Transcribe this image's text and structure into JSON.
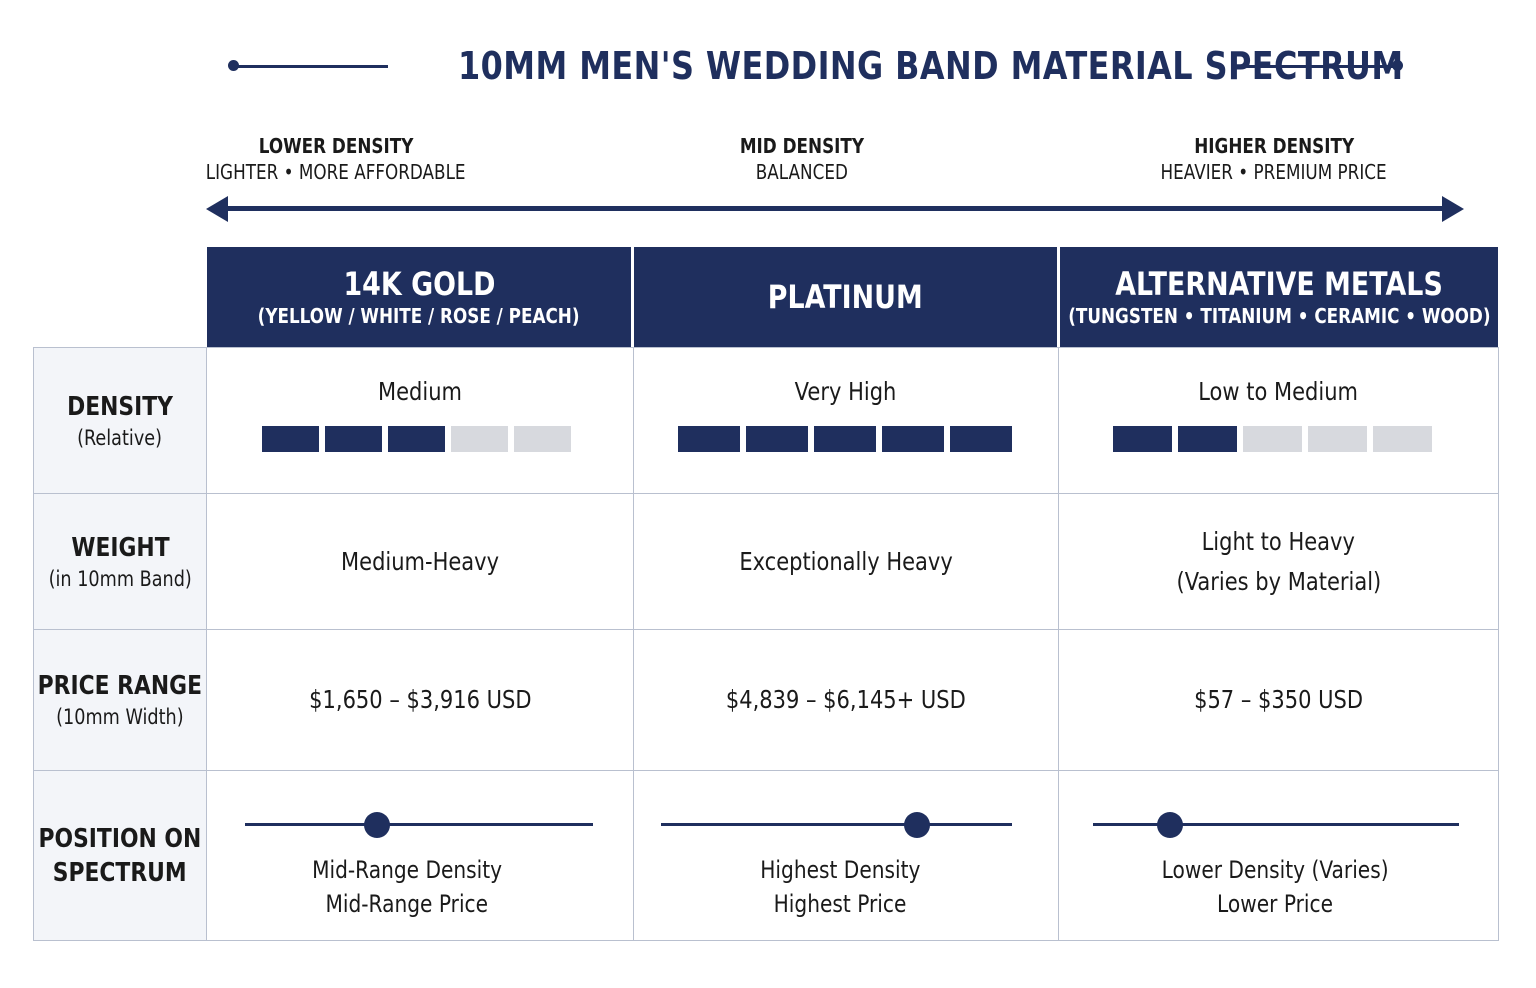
{
  "title": "10MM MEN'S WEDDING BAND MATERIAL SPECTRUM",
  "density_scale": {
    "low": {
      "head": "LOWER DENSITY",
      "sub": "LIGHTER • MORE AFFORDABLE"
    },
    "mid": {
      "head": "MID DENSITY",
      "sub": "BALANCED"
    },
    "high": {
      "head": "HIGHER DENSITY",
      "sub": "HEAVIER • PREMIUM PRICE"
    }
  },
  "columns": [
    {
      "name": "14K GOLD",
      "sub": "(YELLOW / WHITE / ROSE / PEACH)"
    },
    {
      "name": "PLATINUM",
      "sub": ""
    },
    {
      "name": "ALTERNATIVE METALS",
      "sub": "(TUNGSTEN • TITANIUM • CERAMIC • WOOD)"
    }
  ],
  "rows": [
    {
      "title": "DENSITY",
      "sub": "(Relative)"
    },
    {
      "title": "WEIGHT",
      "sub": "(in 10mm Band)"
    },
    {
      "title": "PRICE RANGE",
      "sub": "(10mm Width)"
    },
    {
      "title": "POSITION ON",
      "title2": "SPECTRUM"
    }
  ],
  "density": [
    {
      "label": "Medium",
      "level": 3,
      "max": 5
    },
    {
      "label": "Very High",
      "level": 5,
      "max": 5
    },
    {
      "label": "Low to Medium",
      "level": 2,
      "max": 5
    }
  ],
  "weight": [
    {
      "line1": "Medium-Heavy",
      "line2": ""
    },
    {
      "line1": "Exceptionally Heavy",
      "line2": ""
    },
    {
      "line1": "Light to Heavy",
      "line2": "(Varies by Material)"
    }
  ],
  "price": [
    "$1,650 – $3,916 USD",
    "$4,839 – $6,145+ USD",
    "$57 – $350 USD"
  ],
  "position": [
    {
      "value": 0.38,
      "line1": "Mid-Range Density",
      "line2": "Mid-Range Price"
    },
    {
      "value": 0.73,
      "line1": "Highest Density",
      "line2": "Highest Price"
    },
    {
      "value": 0.21,
      "line1": "Lower Density (Varies)",
      "line2": "Lower Price"
    }
  ],
  "colors": {
    "navy": "#1f2f5e",
    "bar_off": "#d7d9de",
    "row_head_bg": "#f3f5f9"
  }
}
